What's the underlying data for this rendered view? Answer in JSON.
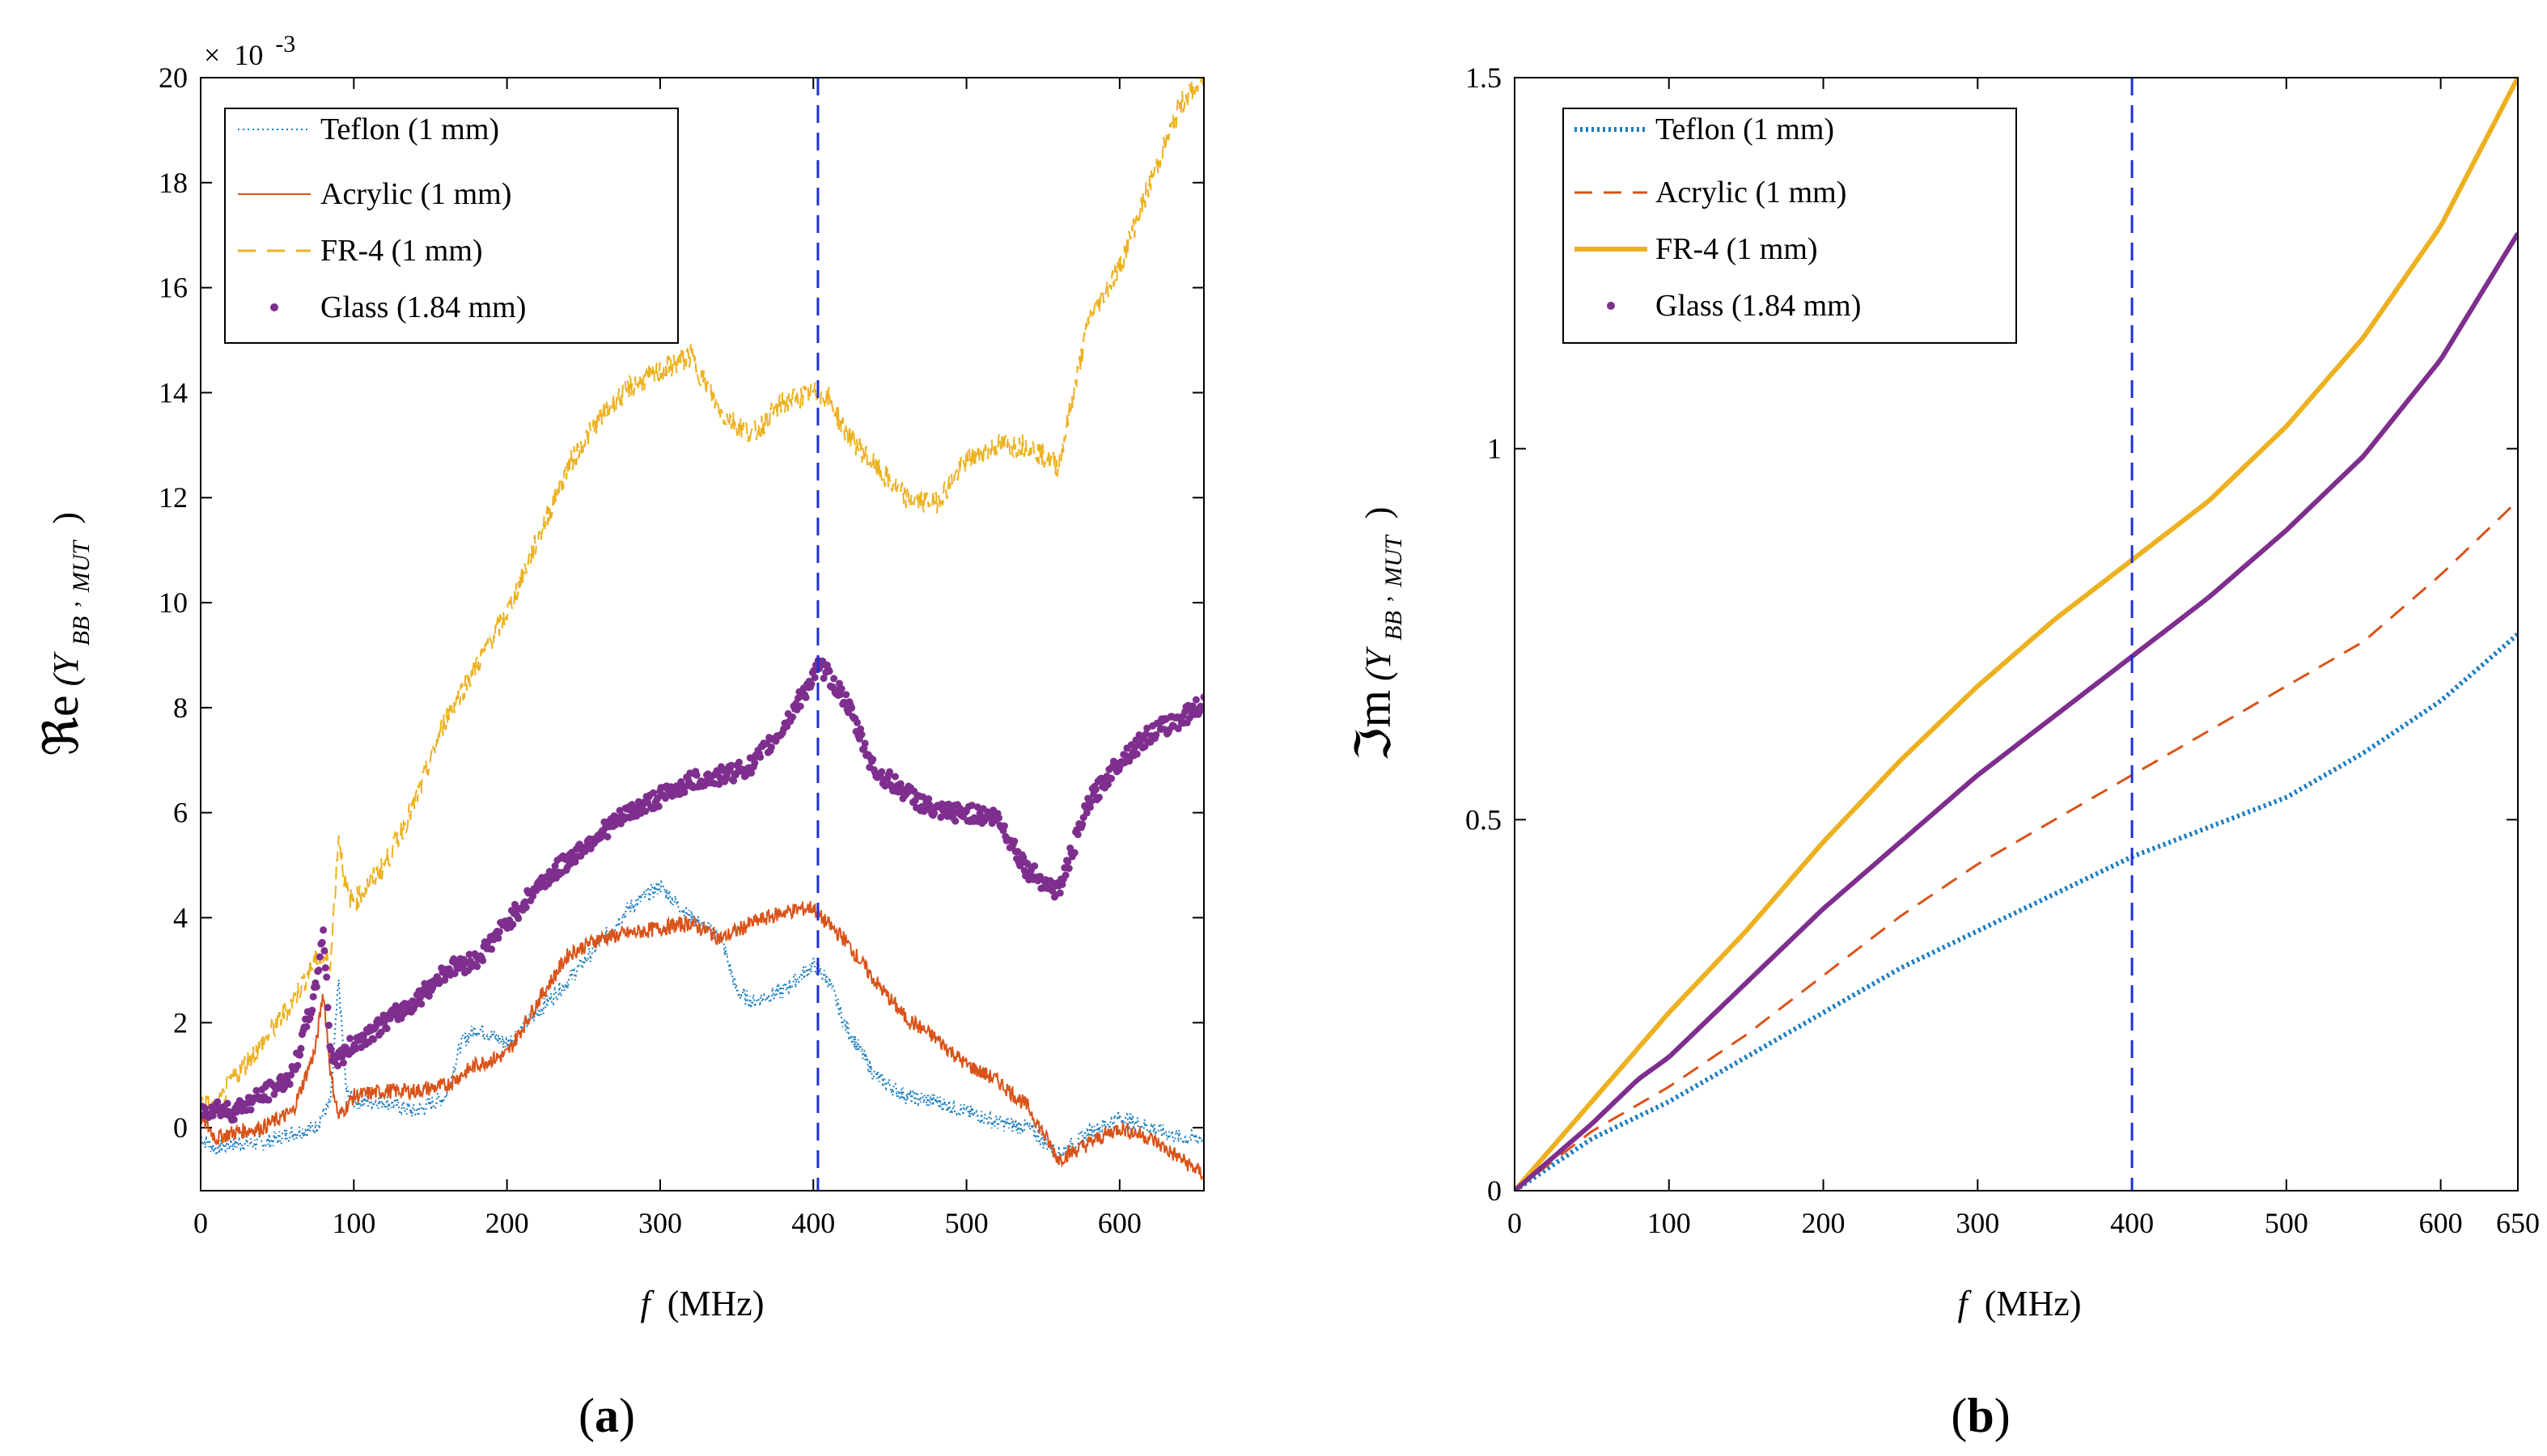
{
  "colors": {
    "teflon": "#1a7dbf",
    "acrylic": "#d95319",
    "fr4": "#edb120",
    "glass": "#7e2f8e",
    "ref_line": "#1f2fd6"
  },
  "chart_data": [
    {
      "type": "line",
      "panel_label": "(a)",
      "xlabel_var": "f",
      "xlabel_unit": "(MHz)",
      "ylabel_prefix": "ℜe",
      "ylabel_open": "(Y",
      "ylabel_sub": "BB",
      "ylabel_comma": ",",
      "ylabel_sub2": "MUT",
      "ylabel_close": ")",
      "y_exponent_times": "×",
      "y_exponent_base": "10",
      "y_exponent_power": "-3",
      "xlim": [
        0,
        655
      ],
      "ylim": [
        -1.2,
        20
      ],
      "xticks": [
        0,
        100,
        200,
        300,
        400,
        500,
        600
      ],
      "xtick_labels": [
        "0",
        "100",
        "200",
        "300",
        "400",
        "500",
        "600"
      ],
      "yticks": [
        0,
        2,
        4,
        6,
        8,
        10,
        12,
        14,
        16,
        18,
        20
      ],
      "ytick_labels": [
        "0",
        "2",
        "4",
        "6",
        "8",
        "10",
        "12",
        "14",
        "16",
        "18",
        "20"
      ],
      "vline_x": 403,
      "legend": [
        "Teflon (1 mm)",
        "Acrylic (1 mm)",
        "FR-4 (1 mm)",
        "Glass (1.84 mm)"
      ],
      "series": [
        {
          "name": "Teflon (1 mm)",
          "style": "dotted",
          "x": [
            0,
            10,
            20,
            40,
            60,
            75,
            85,
            90,
            95,
            100,
            120,
            140,
            160,
            170,
            180,
            200,
            220,
            240,
            260,
            280,
            300,
            320,
            340,
            350,
            360,
            380,
            400,
            410,
            420,
            440,
            460,
            480,
            500,
            520,
            540,
            560,
            580,
            600,
            620,
            640,
            655
          ],
          "y": [
            -0.2,
            -0.4,
            -0.3,
            -0.3,
            -0.1,
            0.0,
            0.5,
            2.8,
            0.7,
            0.5,
            0.5,
            0.3,
            0.6,
            1.6,
            1.9,
            1.6,
            2.2,
            2.8,
            3.5,
            4.2,
            4.6,
            4.0,
            3.6,
            2.6,
            2.4,
            2.6,
            3.1,
            2.8,
            2.0,
            1.0,
            0.6,
            0.5,
            0.3,
            0.1,
            0.0,
            -0.5,
            -0.1,
            0.2,
            0.0,
            -0.2,
            -0.2
          ]
        },
        {
          "name": "Acrylic (1 mm)",
          "style": "solid",
          "x": [
            0,
            10,
            20,
            40,
            60,
            75,
            80,
            85,
            90,
            100,
            120,
            140,
            160,
            180,
            200,
            220,
            240,
            260,
            280,
            300,
            320,
            340,
            360,
            380,
            400,
            405,
            420,
            440,
            460,
            480,
            500,
            520,
            540,
            560,
            580,
            600,
            620,
            640,
            655
          ],
          "y": [
            0.2,
            -0.2,
            -0.1,
            0.0,
            0.3,
            1.5,
            2.6,
            1.0,
            0.2,
            0.6,
            0.7,
            0.7,
            0.8,
            1.2,
            1.4,
            2.4,
            3.3,
            3.6,
            3.7,
            3.8,
            3.9,
            3.6,
            3.9,
            4.1,
            4.2,
            4.0,
            3.6,
            2.8,
            2.1,
            1.7,
            1.2,
            0.9,
            0.4,
            -0.6,
            -0.3,
            0.0,
            -0.2,
            -0.6,
            -0.9
          ]
        },
        {
          "name": "FR-4 (1 mm)",
          "style": "dashed",
          "x": [
            0,
            10,
            20,
            40,
            60,
            75,
            85,
            90,
            95,
            100,
            120,
            140,
            160,
            180,
            200,
            220,
            240,
            260,
            280,
            300,
            320,
            340,
            360,
            380,
            400,
            410,
            420,
            440,
            460,
            480,
            500,
            520,
            540,
            560,
            580,
            600,
            620,
            640,
            655
          ],
          "y": [
            0.5,
            0.3,
            0.9,
            1.6,
            2.4,
            3.2,
            3.2,
            5.6,
            4.5,
            4.3,
            5.0,
            6.2,
            7.8,
            8.8,
            9.8,
            11.2,
            12.6,
            13.5,
            14.1,
            14.4,
            14.7,
            13.6,
            13.2,
            13.8,
            14.0,
            13.9,
            13.3,
            12.6,
            12.0,
            11.9,
            12.7,
            13.0,
            13.0,
            12.6,
            15.4,
            16.4,
            18.0,
            19.5,
            20.0
          ]
        },
        {
          "name": "Glass (1.84 mm)",
          "style": "dots",
          "x": [
            0,
            10,
            20,
            40,
            60,
            75,
            80,
            85,
            90,
            100,
            120,
            140,
            160,
            180,
            200,
            220,
            240,
            260,
            280,
            300,
            320,
            340,
            360,
            380,
            400,
            405,
            420,
            440,
            460,
            480,
            500,
            520,
            540,
            560,
            580,
            600,
            620,
            640,
            655
          ],
          "y": [
            0.3,
            0.4,
            0.3,
            0.6,
            1.0,
            2.6,
            3.8,
            1.4,
            1.3,
            1.6,
            2.0,
            2.4,
            3.0,
            3.2,
            3.9,
            4.6,
            5.1,
            5.6,
            6.0,
            6.3,
            6.6,
            6.7,
            6.9,
            7.6,
            8.6,
            8.8,
            8.2,
            6.8,
            6.4,
            6.0,
            6.0,
            5.9,
            4.9,
            4.5,
            6.2,
            7.0,
            7.5,
            7.8,
            8.1
          ]
        }
      ]
    },
    {
      "type": "line",
      "panel_label": "(b)",
      "xlabel_var": "f",
      "xlabel_unit": "(MHz)",
      "ylabel_prefix": "ℑm",
      "ylabel_open": "(Y",
      "ylabel_sub": "BB",
      "ylabel_comma": ",",
      "ylabel_sub2": "MUT",
      "ylabel_close": ")",
      "xlim": [
        0,
        650
      ],
      "ylim": [
        0,
        1.5
      ],
      "xticks": [
        0,
        100,
        200,
        300,
        400,
        500,
        600,
        650
      ],
      "xtick_labels": [
        "0",
        "100",
        "200",
        "300",
        "400",
        "500",
        "600",
        "650"
      ],
      "yticks": [
        0,
        0.5,
        1,
        1.5
      ],
      "ytick_labels": [
        "0",
        "0.5",
        "1",
        "1.5"
      ],
      "vline_x": 400,
      "legend": [
        "Teflon (1 mm)",
        "Acrylic (1 mm)",
        "FR-4 (1 mm)",
        "Glass (1.84 mm)"
      ],
      "series": [
        {
          "name": "Teflon (1 mm)",
          "style": "dotted-thick",
          "x": [
            0,
            50,
            100,
            150,
            200,
            250,
            300,
            350,
            400,
            450,
            500,
            550,
            600,
            650
          ],
          "y": [
            0,
            0.07,
            0.12,
            0.18,
            0.24,
            0.3,
            0.35,
            0.4,
            0.45,
            0.49,
            0.53,
            0.59,
            0.66,
            0.75
          ]
        },
        {
          "name": "Acrylic (1 mm)",
          "style": "dashed",
          "x": [
            0,
            50,
            100,
            150,
            200,
            250,
            300,
            350,
            400,
            450,
            500,
            550,
            600,
            650
          ],
          "y": [
            0,
            0.08,
            0.14,
            0.21,
            0.29,
            0.37,
            0.44,
            0.5,
            0.56,
            0.62,
            0.68,
            0.74,
            0.83,
            0.93
          ]
        },
        {
          "name": "FR-4 (1 mm)",
          "style": "solid-thick",
          "x": [
            0,
            50,
            100,
            150,
            200,
            250,
            300,
            350,
            400,
            450,
            500,
            550,
            600,
            650
          ],
          "y": [
            0,
            0.12,
            0.24,
            0.35,
            0.47,
            0.58,
            0.68,
            0.77,
            0.85,
            0.93,
            1.03,
            1.15,
            1.3,
            1.5
          ]
        },
        {
          "name": "Glass (1.84 mm)",
          "style": "solid-thick",
          "x": [
            0,
            50,
            80,
            100,
            150,
            200,
            250,
            300,
            350,
            400,
            450,
            500,
            550,
            600,
            650
          ],
          "y": [
            0,
            0.09,
            0.15,
            0.18,
            0.28,
            0.38,
            0.47,
            0.56,
            0.64,
            0.72,
            0.8,
            0.89,
            0.99,
            1.12,
            1.29
          ]
        }
      ]
    }
  ]
}
